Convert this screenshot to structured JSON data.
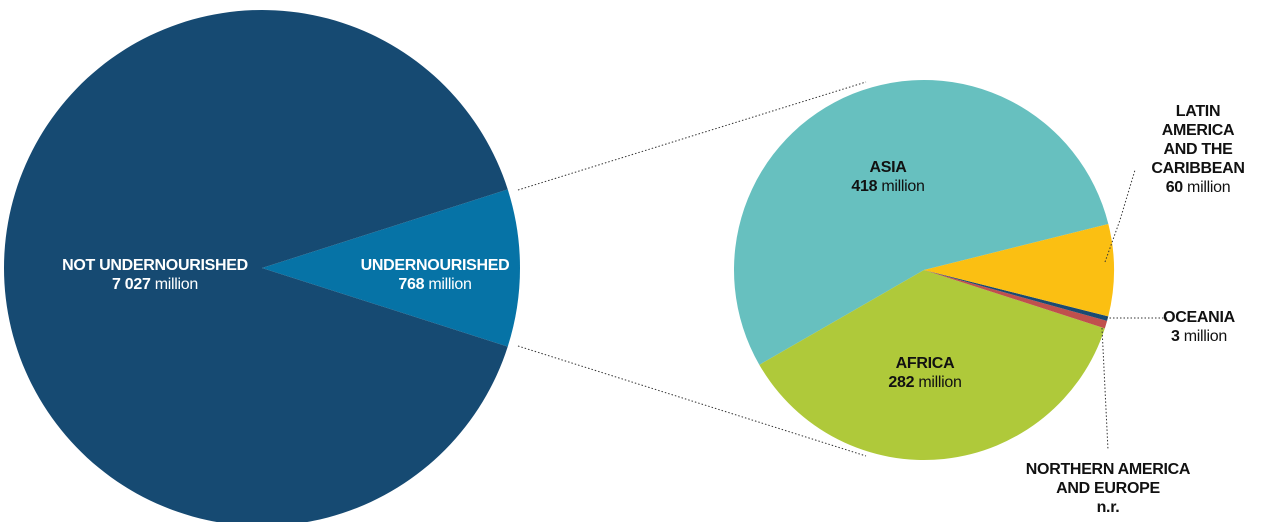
{
  "chart_data": [
    {
      "type": "pie",
      "categories": [
        "NOT UNDERNOURISHED",
        "UNDERNOURISHED"
      ],
      "values": [
        7027,
        768
      ],
      "value_labels": [
        "7 027",
        "768"
      ],
      "unit": "million",
      "colors": [
        "#164a72",
        "#0673a6"
      ]
    },
    {
      "type": "pie",
      "categories": [
        "LATIN AMERICA\nAND THE CARIBBEAN",
        "OCEANIA",
        "NORTHERN AMERICA\nAND EUROPE",
        "AFRICA",
        "ASIA"
      ],
      "values": [
        60,
        3,
        5,
        282,
        418
      ],
      "value_labels": [
        "60",
        "3",
        "n.r.",
        "282",
        "418"
      ],
      "unit": "million",
      "colors": [
        "#fbbf12",
        "#1a4a72",
        "#c0504d",
        "#afc93a",
        "#67c0bf"
      ]
    }
  ]
}
